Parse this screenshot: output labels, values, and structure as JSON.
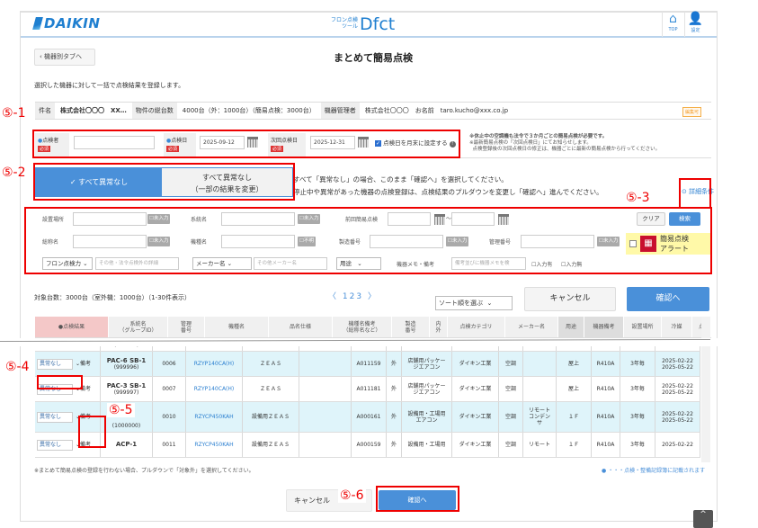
{
  "header": {
    "brand": "DAIKIN",
    "tool_small_1": "フロン点検",
    "tool_small_2": "ツール",
    "tool_name": "Dfct",
    "top_label": "TOP",
    "settings_label": "設定"
  },
  "page": {
    "back_label": "機器別タブへ",
    "title": "まとめて簡易点検",
    "description": "選択した機器に対して一括で点検結果を登録します。"
  },
  "info": {
    "case_label": "件名",
    "case_value": "株式会社〇〇〇　XX…",
    "total_label": "物件の総台数",
    "total_value": "4000台（外：1000台）（簡易点検：3000台）",
    "manager_label": "機器管理者",
    "manager_value": "株式会社〇〇〇　お名前　taro.kucho@xxx.co.jp",
    "badge": "編集可"
  },
  "inspection": {
    "inspector_label": "点検者",
    "required": "必須",
    "inspector_value": "",
    "date_label": "点検日",
    "date_value": "2025-09-12",
    "next_label": "次回点検日",
    "next_value": "2025-12-31",
    "month_end_label": "点検日を月末に設定する",
    "month_end_checked": true,
    "note1": "※休止中の空調機も法令で３か月ごとの簡易点検が必要です。",
    "note2": "※最新簡易点検の「次回点検日」にてお知らせします。",
    "note3": "点検登録後の次回点検日の修正は、機器ごとに最新の簡易点検から行ってください。"
  },
  "toggle": {
    "all_normal": "すべて異常なし",
    "all_normal_change_1": "すべて異常なし",
    "all_normal_change_2": "（一部の結果を変更）",
    "instr1": "すべて「異常なし」の場合、このまま「確認へ」を選択してください。",
    "instr2": "停止中や異常があった機器の点検登録は、点検結果のプルダウンを変更し「確認へ」進んでください。",
    "detail_label": "詳細条件"
  },
  "search": {
    "location": "設置場所",
    "system": "系統名",
    "last_check": "前回簡易点検",
    "tilde": "～",
    "clear": "クリア",
    "search": "検索",
    "nickname": "総称名",
    "model": "機種名",
    "serial": "製造番号",
    "mgmt": "管理番号",
    "unentered": "未入力",
    "unknown": "不明",
    "alert_1": "簡易点検",
    "alert_2": "アラート",
    "freon_select": "フロン点検力",
    "freon_ph": "その他・法令点検外の詳細",
    "maker_select": "メーカー名",
    "maker_ph": "その他メーカー名",
    "use_select": "用途",
    "memo_label": "機器メモ・備考",
    "memo_ph": "備考並びに機器メモを検",
    "has_input": "入力有",
    "no_input": "入力無"
  },
  "list": {
    "count": "対象台数：3000台（室外機：1000台）（1-30件表示）",
    "pages": [
      "1",
      "2",
      "3"
    ],
    "sort_placeholder": "ソート順を選ぶ",
    "cancel": "キャンセル",
    "confirm": "確認へ",
    "headers": [
      "●点検結果",
      "系統名\n（グループID）",
      "管理\n番号",
      "機種名",
      "品名仕様",
      "機種名備考\n（総称名など）",
      "製造\n番号",
      "内\n外",
      "点検カテゴリ",
      "メーカー名",
      "用途",
      "機器備考",
      "設置場所",
      "冷媒",
      "点"
    ],
    "rows": [
      {
        "result": "異常なし",
        "remark": "備考",
        "system": "",
        "group": "(999995)",
        "no": "0005",
        "model": "",
        "spec": "",
        "alias": "",
        "serial": "A011160",
        "io": "外",
        "category": "シエアコン",
        "maker": "ダイキン工業",
        "use": "空調",
        "memo": "",
        "place": "屋上",
        "refrigerant": "R410A",
        "freq": "3年毎",
        "dates": "2025-05-22"
      },
      {
        "result": "異常なし",
        "remark": "備考",
        "system": "PAC-6 SB-1",
        "group": "(999996)",
        "no": "0006",
        "model": "RZYP140CA(H)",
        "spec": "ＺＥＡＳ",
        "alias": "",
        "serial": "A011159",
        "io": "外",
        "category": "店舗用パッケージエアコン",
        "maker": "ダイキン工業",
        "use": "空調",
        "memo": "",
        "place": "屋上",
        "refrigerant": "R410A",
        "freq": "3年毎",
        "dates": "2025-02-22 2025-05-22"
      },
      {
        "result": "異常なし",
        "remark": "備考",
        "system": "PAC-3 SB-1",
        "group": "(999997)",
        "no": "0007",
        "model": "RZYP140CA(H)",
        "spec": "ＺＥＡＳ",
        "alias": "",
        "serial": "A011181",
        "io": "外",
        "category": "店舗用パッケージエアコン",
        "maker": "ダイキン工業",
        "use": "空調",
        "memo": "",
        "place": "屋上",
        "refrigerant": "R410A",
        "freq": "3年毎",
        "dates": "2025-02-22 2025-05-22"
      },
      {
        "result": "異常なし",
        "remark": "備考",
        "system": "",
        "group": "(1000000)",
        "no": "0010",
        "model": "RZYCP450KAH",
        "spec": "設備用ＺＥＡＳ",
        "alias": "",
        "serial": "A000161",
        "io": "外",
        "category": "設備用・工場用エアコン",
        "maker": "ダイキン工業",
        "use": "空調",
        "memo": "リモートコンデンサ",
        "place": "１Ｆ",
        "refrigerant": "R410A",
        "freq": "3年毎",
        "dates": "2025-02-22 2025-05-22"
      },
      {
        "result": "異常なし",
        "remark": "備考",
        "system": "ACP-1",
        "group": "",
        "no": "0011",
        "model": "RZYCP450KAH",
        "spec": "設備用ＺＥＡＳ",
        "alias": "",
        "serial": "A000159",
        "io": "外",
        "category": "設備用・工場用",
        "maker": "ダイキン工業",
        "use": "空調",
        "memo": "リモート",
        "place": "１Ｆ",
        "refrigerant": "R410A",
        "freq": "3年毎",
        "dates": "2025-02-22"
      }
    ],
    "footnote": "※まとめて簡易点検の登録を行わない場合、プルダウンで「対象外」を選択してください。",
    "legend": "・・・点検・整備記録簿に記載されます"
  },
  "bottom": {
    "cancel": "キャンセル",
    "confirm": "確認へ"
  },
  "annotations": [
    "⑤-1",
    "⑤-2",
    "⑤-3",
    "⑤-4",
    "⑤-5",
    "⑤-6"
  ],
  "colors": {
    "accent": "#4a90d9",
    "annotation": "#e00000",
    "row_highlight": "#dff4fa",
    "result_header": "#f4c8c8"
  }
}
